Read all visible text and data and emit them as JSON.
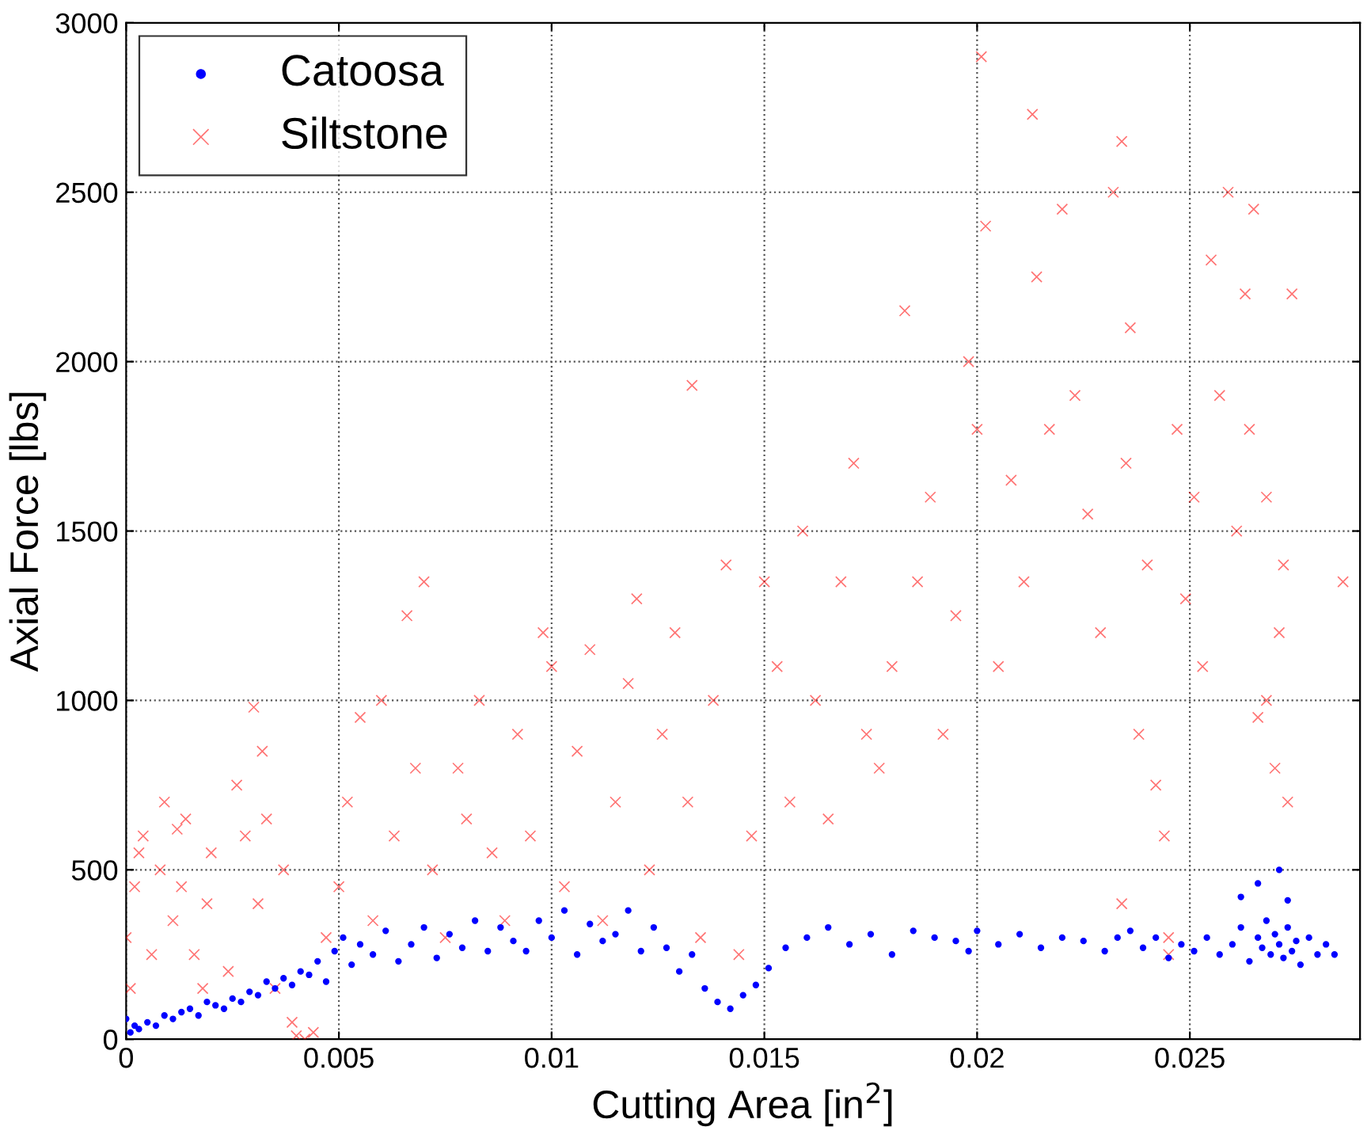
{
  "chart_data": {
    "type": "scatter",
    "xlabel": "Cutting Area [in$^{2}$]",
    "ylabel": "Axial Force [lbs]",
    "xlim": [
      0,
      0.029
    ],
    "ylim": [
      0,
      3000
    ],
    "xticks": [
      0,
      0.005,
      0.01,
      0.015,
      0.02,
      0.025
    ],
    "yticks": [
      0,
      500,
      1000,
      1500,
      2000,
      2500,
      3000
    ],
    "grid": true,
    "legend": "top left",
    "series": [
      {
        "name": "Catoosa",
        "color": "#0000ff",
        "marker": "circle",
        "x": [
          0.0,
          0.0001,
          0.0002,
          0.0003,
          0.0005,
          0.0007,
          0.0009,
          0.0011,
          0.0013,
          0.0015,
          0.0017,
          0.0019,
          0.0021,
          0.0023,
          0.0025,
          0.0027,
          0.0029,
          0.0031,
          0.0033,
          0.0035,
          0.0037,
          0.0039,
          0.0041,
          0.0043,
          0.0045,
          0.0047,
          0.0049,
          0.0051,
          0.0053,
          0.0055,
          0.0058,
          0.0061,
          0.0064,
          0.0067,
          0.007,
          0.0073,
          0.0076,
          0.0079,
          0.0082,
          0.0085,
          0.0088,
          0.0091,
          0.0094,
          0.0097,
          0.01,
          0.0103,
          0.0106,
          0.0109,
          0.0112,
          0.0115,
          0.0118,
          0.0121,
          0.0124,
          0.0127,
          0.013,
          0.0133,
          0.0136,
          0.0139,
          0.0142,
          0.0145,
          0.0148,
          0.0151,
          0.0155,
          0.016,
          0.0165,
          0.017,
          0.0175,
          0.018,
          0.0185,
          0.019,
          0.0195,
          0.0198,
          0.02,
          0.0205,
          0.021,
          0.0215,
          0.022,
          0.0225,
          0.023,
          0.0233,
          0.0236,
          0.0239,
          0.0242,
          0.0245,
          0.0248,
          0.0251,
          0.0254,
          0.0257,
          0.026,
          0.0262,
          0.0264,
          0.0266,
          0.0267,
          0.0268,
          0.0269,
          0.027,
          0.0271,
          0.0272,
          0.0273,
          0.0274,
          0.0275,
          0.0276,
          0.0278,
          0.028,
          0.0282,
          0.0284,
          0.0262,
          0.0266,
          0.0271,
          0.0273
        ],
        "values": [
          60,
          20,
          40,
          30,
          50,
          40,
          70,
          60,
          80,
          90,
          70,
          110,
          100,
          90,
          120,
          110,
          140,
          130,
          170,
          150,
          180,
          160,
          200,
          190,
          230,
          170,
          260,
          300,
          220,
          280,
          250,
          320,
          230,
          280,
          330,
          240,
          310,
          270,
          350,
          260,
          330,
          290,
          260,
          350,
          300,
          380,
          250,
          340,
          290,
          310,
          380,
          260,
          330,
          270,
          200,
          250,
          150,
          110,
          90,
          130,
          160,
          210,
          270,
          300,
          330,
          280,
          310,
          250,
          320,
          300,
          290,
          260,
          320,
          280,
          310,
          270,
          300,
          290,
          260,
          300,
          320,
          270,
          300,
          240,
          280,
          260,
          300,
          250,
          280,
          330,
          230,
          300,
          270,
          350,
          250,
          310,
          280,
          240,
          330,
          260,
          290,
          220,
          300,
          250,
          280,
          250,
          420,
          460,
          500,
          410
        ]
      },
      {
        "name": "Siltstone",
        "color": "#ff0000",
        "marker": "cross",
        "x": [
          0.0,
          0.0001,
          0.0002,
          0.0003,
          0.0004,
          0.0006,
          0.0008,
          0.0009,
          0.0011,
          0.0012,
          0.0013,
          0.0014,
          0.0016,
          0.0018,
          0.0019,
          0.002,
          0.0024,
          0.0026,
          0.0028,
          0.003,
          0.0031,
          0.0032,
          0.0033,
          0.0035,
          0.0037,
          0.0039,
          0.004,
          0.0042,
          0.0044,
          0.0047,
          0.005,
          0.0052,
          0.0055,
          0.0058,
          0.006,
          0.0063,
          0.0066,
          0.0068,
          0.007,
          0.0072,
          0.0075,
          0.0078,
          0.008,
          0.0083,
          0.0086,
          0.0089,
          0.0092,
          0.0095,
          0.0098,
          0.01,
          0.0103,
          0.0106,
          0.0109,
          0.0112,
          0.0115,
          0.0118,
          0.012,
          0.0123,
          0.0126,
          0.0129,
          0.0132,
          0.0133,
          0.0135,
          0.0138,
          0.0141,
          0.0144,
          0.0147,
          0.015,
          0.0153,
          0.0156,
          0.0159,
          0.0162,
          0.0165,
          0.0168,
          0.0171,
          0.0174,
          0.0177,
          0.018,
          0.0183,
          0.0186,
          0.0189,
          0.0192,
          0.0195,
          0.0198,
          0.02,
          0.0202,
          0.0205,
          0.0208,
          0.0211,
          0.0214,
          0.0217,
          0.022,
          0.0223,
          0.0226,
          0.0229,
          0.0232,
          0.0234,
          0.0235,
          0.0236,
          0.0238,
          0.024,
          0.0242,
          0.0244,
          0.0245,
          0.0247,
          0.0249,
          0.0251,
          0.0253,
          0.0255,
          0.0257,
          0.0259,
          0.0261,
          0.0263,
          0.0264,
          0.0266,
          0.0268,
          0.027,
          0.0271,
          0.0272,
          0.0273,
          0.0274,
          0.0286,
          0.0201,
          0.0213,
          0.0234,
          0.0265,
          0.0245,
          0.0268
        ],
        "values": [
          300,
          150,
          450,
          550,
          600,
          250,
          500,
          700,
          350,
          620,
          450,
          650,
          250,
          150,
          400,
          550,
          200,
          750,
          600,
          980,
          400,
          850,
          650,
          150,
          500,
          50,
          10,
          0,
          20,
          300,
          450,
          700,
          950,
          350,
          1000,
          600,
          1250,
          800,
          1350,
          500,
          300,
          800,
          650,
          1000,
          550,
          350,
          900,
          600,
          1200,
          1100,
          450,
          850,
          1150,
          350,
          700,
          1050,
          1300,
          500,
          900,
          1200,
          700,
          1930,
          300,
          1000,
          1400,
          250,
          600,
          1350,
          1100,
          700,
          1500,
          1000,
          650,
          1350,
          1700,
          900,
          800,
          1100,
          2150,
          1350,
          1600,
          900,
          1250,
          2000,
          1800,
          2400,
          1100,
          1650,
          1350,
          2250,
          1800,
          2450,
          1900,
          1550,
          1200,
          2500,
          2650,
          1700,
          2100,
          900,
          1400,
          750,
          600,
          300,
          1800,
          1300,
          1600,
          1100,
          2300,
          1900,
          2500,
          1500,
          2200,
          1800,
          950,
          1600,
          800,
          1200,
          1400,
          700,
          2200,
          1350,
          2900,
          2730,
          400,
          2450,
          250,
          1000
        ]
      }
    ]
  }
}
